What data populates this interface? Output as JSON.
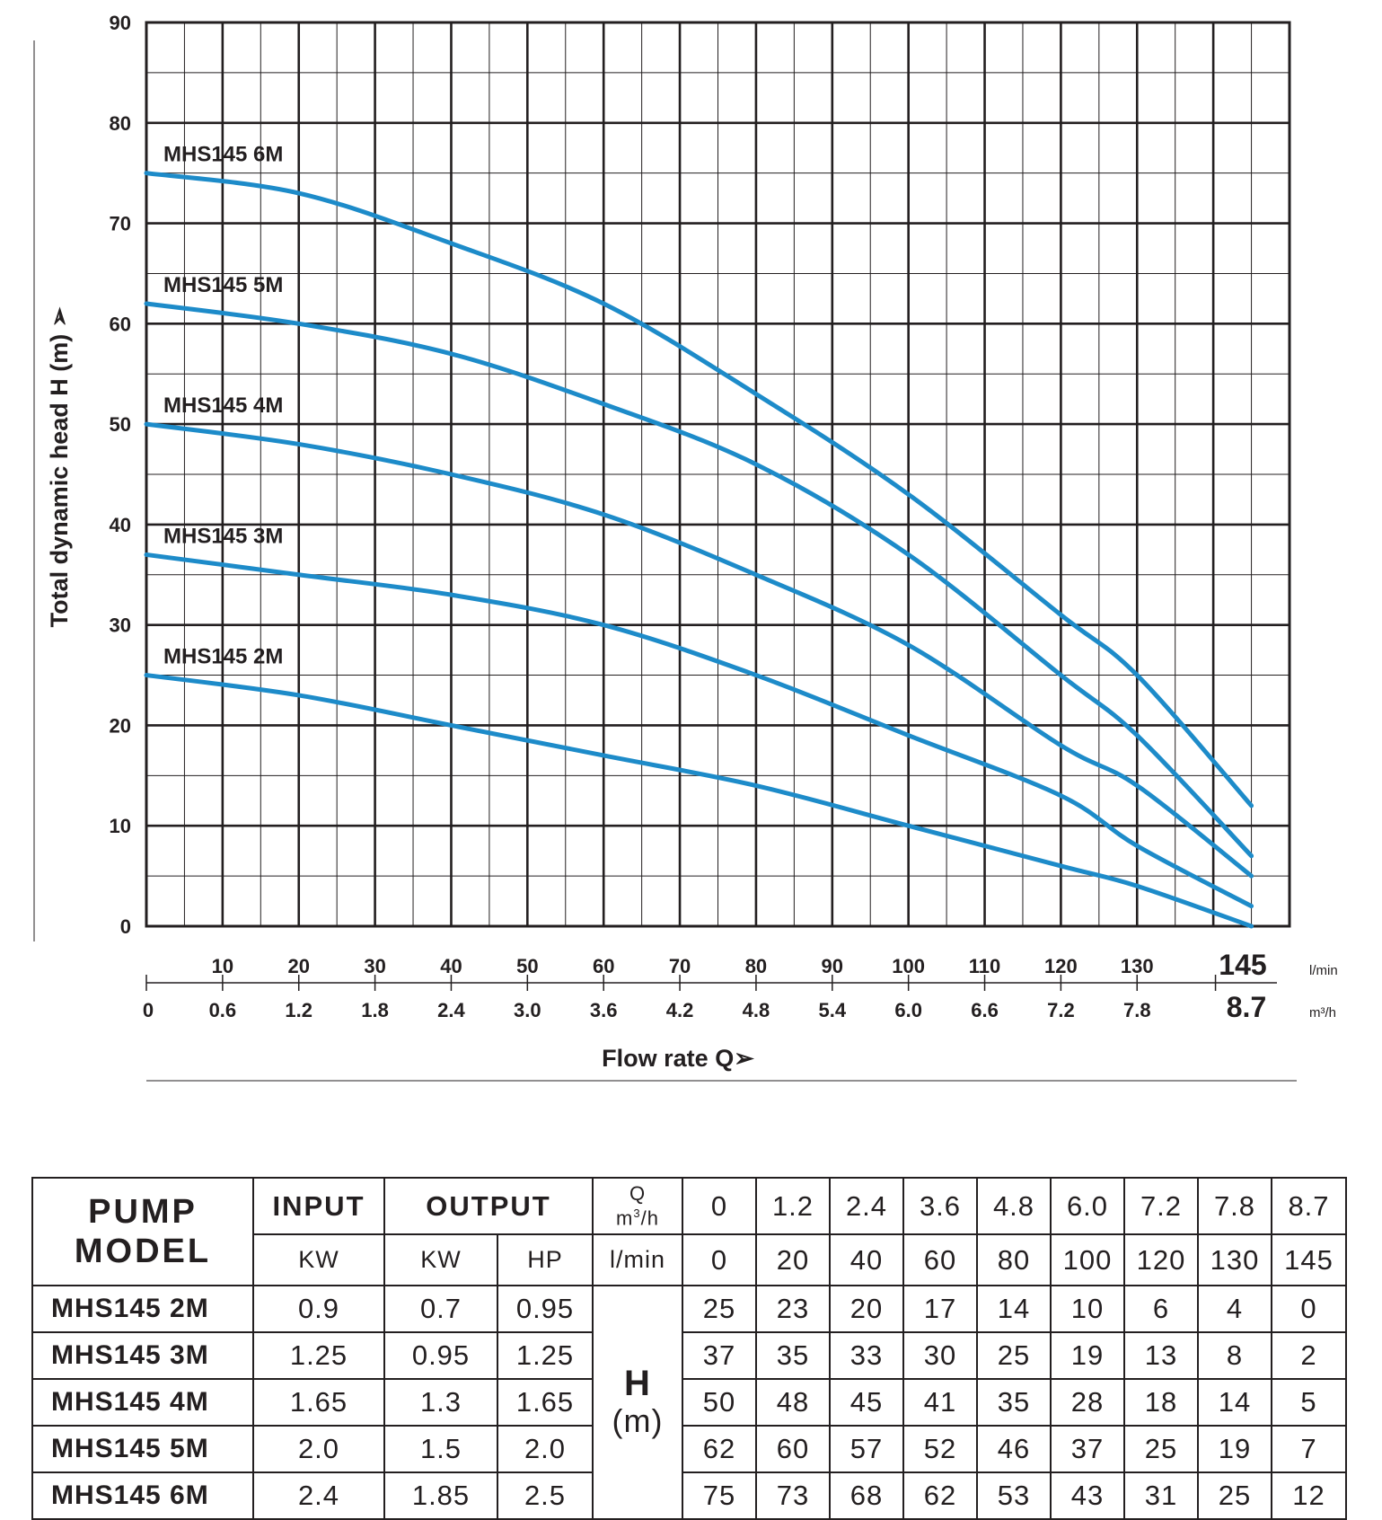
{
  "chart_data": {
    "type": "line",
    "xlabel": "Flow rate Q➢",
    "ylabel": "Total dynamic head H (m) ➢",
    "ylim": [
      0,
      90
    ],
    "yticks": [
      "0",
      "10",
      "20",
      "30",
      "40",
      "50",
      "60",
      "70",
      "80",
      "90"
    ],
    "xlim_lmin": [
      0,
      150
    ],
    "x_lmin_ticks": [
      10,
      20,
      30,
      40,
      50,
      60,
      70,
      80,
      90,
      100,
      110,
      120,
      130
    ],
    "x_lmin_labels": [
      "10",
      "20",
      "30",
      "40",
      "50",
      "60",
      "70",
      "80",
      "90",
      "100",
      "110",
      "120",
      "130"
    ],
    "x_lmin_end": "145",
    "x_lmin_unit": "l/min",
    "x_m3h_ticks": [
      0,
      10,
      20,
      30,
      40,
      50,
      60,
      70,
      80,
      90,
      100,
      110,
      120,
      130
    ],
    "x_m3h_labels": [
      "0",
      "0.6",
      "1.2",
      "1.8",
      "2.4",
      "3.0",
      "3.6",
      "4.2",
      "4.8",
      "5.4",
      "6.0",
      "6.6",
      "7.2",
      "7.8"
    ],
    "x_m3h_end": "8.7",
    "x_m3h_unit": "m³/h",
    "x": [
      0,
      20,
      40,
      60,
      80,
      100,
      120,
      130,
      145
    ],
    "series": [
      {
        "name": "MHS145 2M",
        "values": [
          25,
          23,
          20,
          17,
          14,
          10,
          6,
          4,
          0
        ]
      },
      {
        "name": "MHS145 3M",
        "values": [
          37,
          35,
          33,
          30,
          25,
          19,
          13,
          8,
          2
        ]
      },
      {
        "name": "MHS145 4M",
        "values": [
          50,
          48,
          45,
          41,
          35,
          28,
          18,
          14,
          5
        ]
      },
      {
        "name": "MHS145 5M",
        "values": [
          62,
          60,
          57,
          52,
          46,
          37,
          25,
          19,
          7
        ]
      },
      {
        "name": "MHS145 6M",
        "values": [
          75,
          73,
          68,
          62,
          53,
          43,
          31,
          25,
          12
        ]
      }
    ],
    "line_color": "#1d8bc9"
  },
  "table": {
    "pump_model_line1": "PUMP",
    "pump_model_line2": "MODEL",
    "input_label": "INPUT",
    "output_label": "OUTPUT",
    "q_label": "Q",
    "q_unit_m3h": "m",
    "q_unit_sup": "3",
    "q_unit_h": "/h",
    "input_kw_label": "KW",
    "output_kw_label": "KW",
    "output_hp_label": "HP",
    "lmin_label": "l/min",
    "h_label": "H",
    "h_unit": "(m)",
    "flow_m3h": [
      "0",
      "1.2",
      "2.4",
      "3.6",
      "4.8",
      "6.0",
      "7.2",
      "7.8",
      "8.7"
    ],
    "flow_lmin": [
      "0",
      "20",
      "40",
      "60",
      "80",
      "100",
      "120",
      "130",
      "145"
    ],
    "rows": [
      {
        "model": "MHS145 2M",
        "input_kw": "0.9",
        "output_kw": "0.7",
        "output_hp": "0.95",
        "h": [
          "25",
          "23",
          "20",
          "17",
          "14",
          "10",
          "6",
          "4",
          "0"
        ]
      },
      {
        "model": "MHS145 3M",
        "input_kw": "1.25",
        "output_kw": "0.95",
        "output_hp": "1.25",
        "h": [
          "37",
          "35",
          "33",
          "30",
          "25",
          "19",
          "13",
          "8",
          "2"
        ]
      },
      {
        "model": "MHS145 4M",
        "input_kw": "1.65",
        "output_kw": "1.3",
        "output_hp": "1.65",
        "h": [
          "50",
          "48",
          "45",
          "41",
          "35",
          "28",
          "18",
          "14",
          "5"
        ]
      },
      {
        "model": "MHS145 5M",
        "input_kw": "2.0",
        "output_kw": "1.5",
        "output_hp": "2.0",
        "h": [
          "62",
          "60",
          "57",
          "52",
          "46",
          "37",
          "25",
          "19",
          "7"
        ]
      },
      {
        "model": "MHS145 6M",
        "input_kw": "2.4",
        "output_kw": "1.85",
        "output_hp": "2.5",
        "h": [
          "75",
          "73",
          "68",
          "62",
          "53",
          "43",
          "31",
          "25",
          "12"
        ]
      }
    ]
  }
}
